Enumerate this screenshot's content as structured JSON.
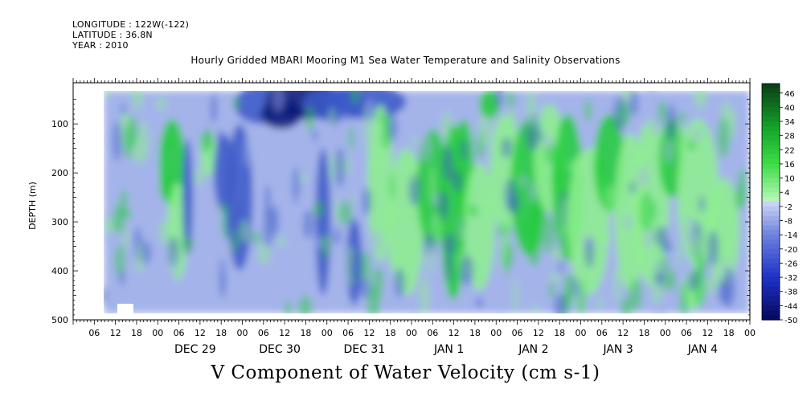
{
  "meta": {
    "longitude": "LONGITUDE : 122W(-122)",
    "latitude": "LATITUDE : 36.8N",
    "year": "YEAR : 2010"
  },
  "chart_data": {
    "type": "heatmap",
    "title": "Hourly Gridded MBARI Mooring M1 Sea Water Temperature and Salinity Observations",
    "xlabel": "V Component of Water Velocity (cm s-1)",
    "ylabel": "DEPTH (m)",
    "y_range": [
      0,
      500
    ],
    "y_ticks": [
      100,
      200,
      300,
      400,
      500
    ],
    "y_inverted": true,
    "x_start": "2010-12-28 00:00",
    "x_end": "2011-01-05 00:00",
    "x_hour_ticks": [
      "06",
      "12",
      "18",
      "00",
      "06",
      "12",
      "18",
      "00",
      "06",
      "12",
      "18",
      "00",
      "06",
      "12",
      "18",
      "00",
      "06",
      "12",
      "18",
      "00",
      "06",
      "12",
      "18",
      "00",
      "06",
      "12",
      "18",
      "00",
      "06",
      "12",
      "18",
      "00"
    ],
    "x_day_labels": [
      "DEC 29",
      "DEC 30",
      "DEC 31",
      "JAN  1",
      "JAN  2",
      "JAN  3",
      "JAN  4"
    ],
    "colorbar": {
      "min": -50,
      "max": 50,
      "labels": [
        "46",
        "40",
        "34",
        "28",
        "22",
        "16",
        "10",
        "4",
        "-2",
        "-8",
        "-14",
        "-20",
        "-26",
        "-32",
        "-38",
        "-44",
        "-50"
      ]
    },
    "grid": false,
    "colors": {
      "strong_negative": "#0a1a78",
      "negative": "#3c58c8",
      "slight_negative": "#a4b4ea",
      "slight_positive": "#8ef08e",
      "positive": "#22cc3a",
      "strong_positive": "#0c4e12"
    }
  }
}
